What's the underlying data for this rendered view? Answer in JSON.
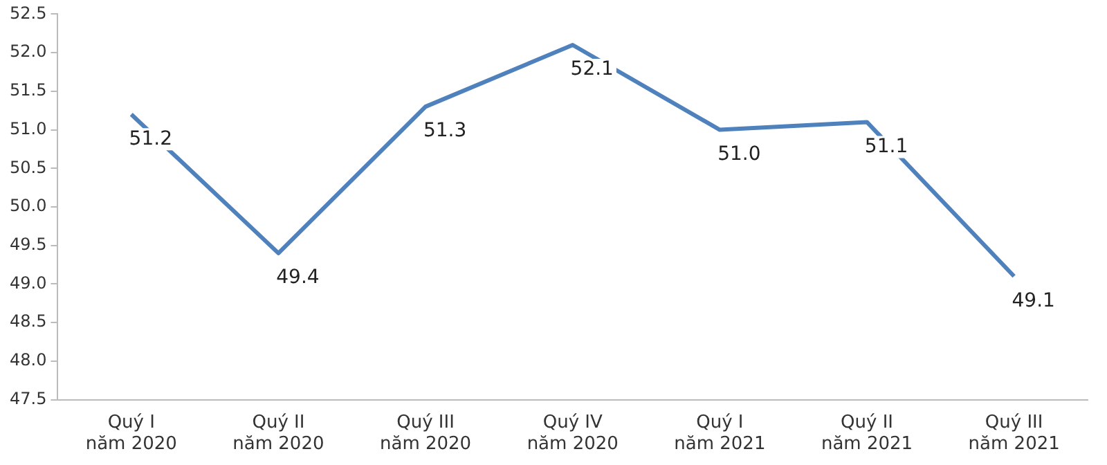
{
  "chart_data": {
    "type": "line",
    "categories": [
      "Quý I\nnăm 2020",
      "Quý II\nnăm 2020",
      "Quý III\nnăm 2020",
      "Quý IV\nnăm 2020",
      "Quý I\nnăm 2021",
      "Quý II\nnăm 2021",
      "Quý III\nnăm 2021"
    ],
    "series": [
      {
        "color": "#4f81bd",
        "values": [
          51.2,
          49.4,
          51.3,
          52.1,
          51.0,
          51.1,
          49.1
        ],
        "value_labels": [
          "51.2",
          "49.4",
          "51.3",
          "52.1",
          "51.0",
          "51.1",
          "49.1"
        ]
      }
    ],
    "ylim": [
      47.5,
      52.5
    ],
    "yticks": [
      {
        "value": 47.5,
        "label": "47.5"
      },
      {
        "value": 48,
        "label": "48.0"
      },
      {
        "value": 48.5,
        "label": "48.5"
      },
      {
        "value": 49,
        "label": "49.0"
      },
      {
        "value": 49.5,
        "label": "49.5"
      },
      {
        "value": 50,
        "label": "50.0"
      },
      {
        "value": 50.5,
        "label": "50.5"
      },
      {
        "value": 51,
        "label": "51.0"
      },
      {
        "value": 51.5,
        "label": "51.5"
      },
      {
        "value": 52,
        "label": "52.0"
      },
      {
        "value": 52.5,
        "label": "52.5"
      }
    ],
    "grid": false,
    "legend": false,
    "marker": "none",
    "line_style": "solid"
  }
}
